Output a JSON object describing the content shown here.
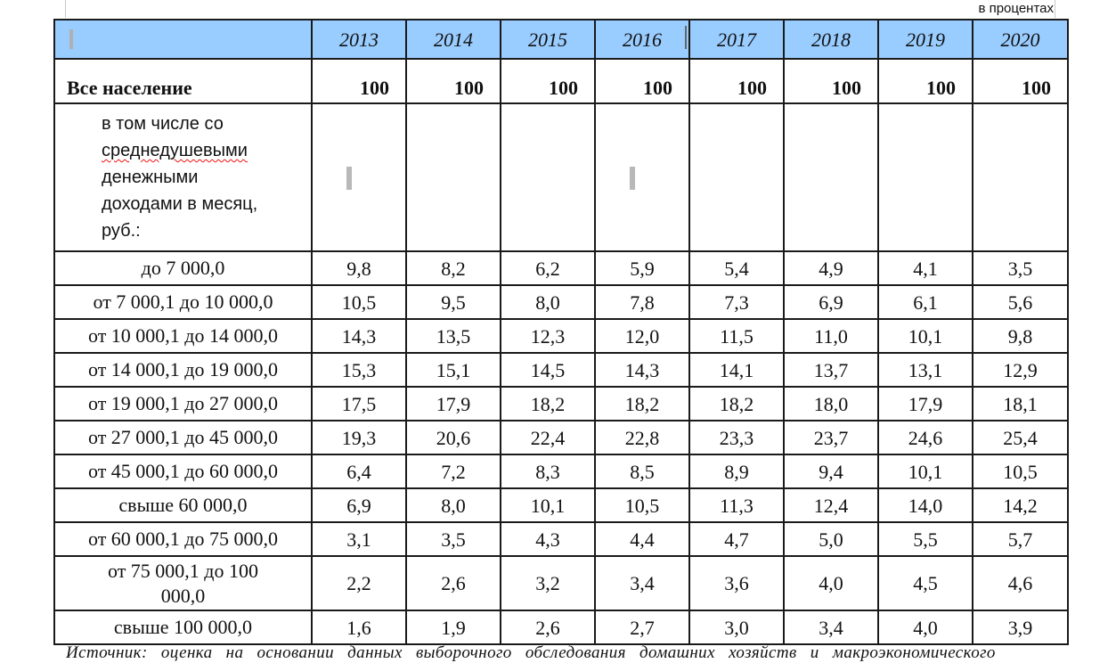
{
  "units_note": "в процентах",
  "header": {
    "years": [
      "2013",
      "2014",
      "2015",
      "2016",
      "2017",
      "2018",
      "2019",
      "2020"
    ]
  },
  "total_row": {
    "label": "Все население",
    "values": [
      "100",
      "100",
      "100",
      "100",
      "100",
      "100",
      "100",
      "100"
    ]
  },
  "subheading": {
    "line1": "в том числе со",
    "line2": "среднедушевыми",
    "line3": "денежными",
    "line4": "доходами в месяц,",
    "line5": "руб.:"
  },
  "rows": [
    {
      "label": "до 7 000,0",
      "values": [
        "9,8",
        "8,2",
        "6,2",
        "5,9",
        "5,4",
        "4,9",
        "4,1",
        "3,5"
      ]
    },
    {
      "label": "от 7 000,1 до 10 000,0",
      "values": [
        "10,5",
        "9,5",
        "8,0",
        "7,8",
        "7,3",
        "6,9",
        "6,1",
        "5,6"
      ]
    },
    {
      "label": "от 10 000,1 до 14 000,0",
      "values": [
        "14,3",
        "13,5",
        "12,3",
        "12,0",
        "11,5",
        "11,0",
        "10,1",
        "9,8"
      ]
    },
    {
      "label": "от 14 000,1 до 19 000,0",
      "values": [
        "15,3",
        "15,1",
        "14,5",
        "14,3",
        "14,1",
        "13,7",
        "13,1",
        "12,9"
      ]
    },
    {
      "label": "от 19 000,1 до 27 000,0",
      "values": [
        "17,5",
        "17,9",
        "18,2",
        "18,2",
        "18,2",
        "18,0",
        "17,9",
        "18,1"
      ]
    },
    {
      "label": "от 27 000,1 до 45 000,0",
      "values": [
        "19,3",
        "20,6",
        "22,4",
        "22,8",
        "23,3",
        "23,7",
        "24,6",
        "25,4"
      ]
    },
    {
      "label": "от 45 000,1 до 60 000,0",
      "values": [
        "6,4",
        "7,2",
        "8,3",
        "8,5",
        "8,9",
        "9,4",
        "10,1",
        "10,5"
      ]
    },
    {
      "label": "свыше 60 000,0",
      "values": [
        "6,9",
        "8,0",
        "10,1",
        "10,5",
        "11,3",
        "12,4",
        "14,0",
        "14,2"
      ]
    },
    {
      "label": "от 60 000,1 до 75 000,0",
      "values": [
        "3,1",
        "3,5",
        "4,3",
        "4,4",
        "4,7",
        "5,0",
        "5,5",
        "5,7"
      ]
    },
    {
      "label": "от 75 000,1 до 100 000,0",
      "values": [
        "2,2",
        "2,6",
        "3,2",
        "3,4",
        "3,6",
        "4,0",
        "4,5",
        "4,6"
      ]
    },
    {
      "label": "свыше 100 000,0",
      "values": [
        "1,6",
        "1,9",
        "2,6",
        "2,7",
        "3,0",
        "3,4",
        "4,0",
        "3,9"
      ]
    }
  ],
  "source_note": "Источник: оценка на основании данных выборочного обследования домашних хозяйств и макроэкономического"
}
